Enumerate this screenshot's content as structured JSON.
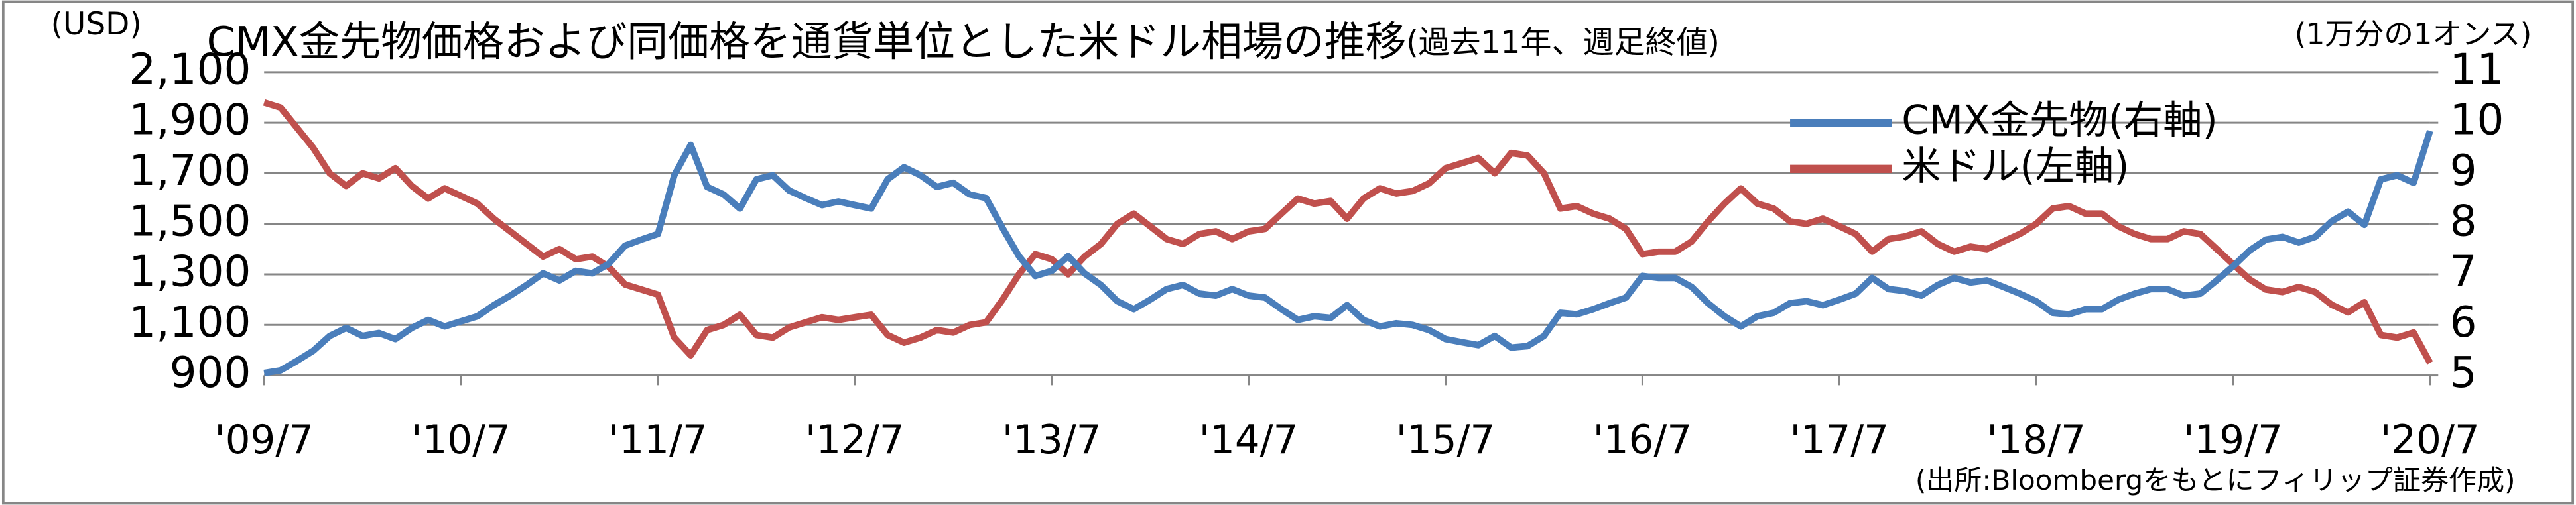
{
  "chart_data": {
    "type": "line",
    "title": "CMX金先物価格および同価格を通貨単位とした米ドル相場の推移",
    "subtitle": "(過去11年、週足終値)",
    "y_label": "(USD)",
    "y2_label": "(1万分の1オンス)",
    "source": "(出所:Bloombergをもとにフィリップ証券作成)",
    "categories": [
      "'09/7",
      null,
      null,
      null,
      null,
      null,
      null,
      null,
      null,
      null,
      null,
      null,
      "'10/7",
      null,
      null,
      null,
      null,
      null,
      null,
      null,
      null,
      null,
      null,
      null,
      "'11/7",
      null,
      null,
      null,
      null,
      null,
      null,
      null,
      null,
      null,
      null,
      null,
      "'12/7",
      null,
      null,
      null,
      null,
      null,
      null,
      null,
      null,
      null,
      null,
      null,
      "'13/7",
      null,
      null,
      null,
      null,
      null,
      null,
      null,
      null,
      null,
      null,
      null,
      "'14/7",
      null,
      null,
      null,
      null,
      null,
      null,
      null,
      null,
      null,
      null,
      null,
      "'15/7",
      null,
      null,
      null,
      null,
      null,
      null,
      null,
      null,
      null,
      null,
      null,
      "'16/7",
      null,
      null,
      null,
      null,
      null,
      null,
      null,
      null,
      null,
      null,
      null,
      "'17/7",
      null,
      null,
      null,
      null,
      null,
      null,
      null,
      null,
      null,
      null,
      null,
      "'18/7",
      null,
      null,
      null,
      null,
      null,
      null,
      null,
      null,
      null,
      null,
      null,
      "'19/7",
      null,
      null,
      null,
      null,
      null,
      null,
      null,
      null,
      null,
      null,
      null,
      "'20/7"
    ],
    "series": [
      {
        "name": "CMX金先物(右軸)",
        "color": "#4a7ebb",
        "axis": "y2",
        "values": [
          5.05,
          5.1,
          5.29,
          5.49,
          5.78,
          5.94,
          5.78,
          5.84,
          5.72,
          5.94,
          6.1,
          5.97,
          6.07,
          6.17,
          6.39,
          6.58,
          6.79,
          7.02,
          6.88,
          7.07,
          7.02,
          7.21,
          7.57,
          7.69,
          7.8,
          8.96,
          9.56,
          8.73,
          8.58,
          8.3,
          8.88,
          8.96,
          8.66,
          8.51,
          8.37,
          8.44,
          8.37,
          8.3,
          8.88,
          9.12,
          8.96,
          8.73,
          8.81,
          8.58,
          8.51,
          7.92,
          7.36,
          6.97,
          7.07,
          7.36,
          7.02,
          6.79,
          6.47,
          6.31,
          6.5,
          6.71,
          6.79,
          6.62,
          6.58,
          6.71,
          6.58,
          6.54,
          6.31,
          6.1,
          6.17,
          6.14,
          6.39,
          6.1,
          5.97,
          6.03,
          6.0,
          5.9,
          5.72,
          5.66,
          5.6,
          5.78,
          5.55,
          5.58,
          5.78,
          6.24,
          6.21,
          6.31,
          6.43,
          6.54,
          6.97,
          6.93,
          6.93,
          6.75,
          6.43,
          6.17,
          5.97,
          6.17,
          6.24,
          6.43,
          6.47,
          6.39,
          6.5,
          6.62,
          6.93,
          6.71,
          6.67,
          6.58,
          6.79,
          6.93,
          6.84,
          6.88,
          6.75,
          6.62,
          6.47,
          6.24,
          6.21,
          6.31,
          6.31,
          6.5,
          6.62,
          6.71,
          6.71,
          6.58,
          6.62,
          6.88,
          7.16,
          7.47,
          7.69,
          7.74,
          7.63,
          7.74,
          8.05,
          8.24,
          7.98,
          8.88,
          8.96,
          8.81,
          9.84
        ]
      },
      {
        "name": "米ドル(左軸)",
        "color": "#c0504d",
        "values": [
          1980,
          1960,
          1880,
          1800,
          1700,
          1650,
          1700,
          1680,
          1720,
          1650,
          1600,
          1640,
          1610,
          1580,
          1520,
          1470,
          1420,
          1370,
          1400,
          1360,
          1370,
          1330,
          1260,
          1240,
          1220,
          1050,
          980,
          1080,
          1100,
          1140,
          1060,
          1050,
          1090,
          1110,
          1130,
          1120,
          1130,
          1140,
          1060,
          1030,
          1050,
          1080,
          1070,
          1100,
          1110,
          1200,
          1300,
          1380,
          1360,
          1300,
          1370,
          1420,
          1500,
          1540,
          1490,
          1440,
          1420,
          1460,
          1470,
          1440,
          1470,
          1480,
          1540,
          1600,
          1580,
          1590,
          1520,
          1600,
          1640,
          1620,
          1630,
          1660,
          1720,
          1740,
          1760,
          1700,
          1780,
          1770,
          1700,
          1560,
          1570,
          1540,
          1520,
          1480,
          1380,
          1390,
          1390,
          1430,
          1510,
          1580,
          1640,
          1580,
          1560,
          1510,
          1500,
          1520,
          1490,
          1460,
          1390,
          1440,
          1450,
          1470,
          1420,
          1390,
          1410,
          1400,
          1430,
          1460,
          1500,
          1560,
          1570,
          1540,
          1540,
          1490,
          1460,
          1440,
          1440,
          1470,
          1460,
          1400,
          1340,
          1280,
          1240,
          1230,
          1250,
          1230,
          1180,
          1150,
          1190,
          1060,
          1050,
          1070,
          950
        ]
      }
    ],
    "ylim": [
      900,
      2100
    ],
    "yticks": [
      900,
      {
        "value": 1100,
        "label": "1,100"
      },
      {
        "value": 1300,
        "label": "1,300"
      },
      {
        "value": 1500,
        "label": "1,500"
      },
      {
        "value": 1700,
        "label": "1,700"
      },
      {
        "value": 1900,
        "label": "1,900"
      },
      {
        "value": 2100,
        "label": "2,100"
      }
    ],
    "y2lim": [
      5,
      11
    ],
    "y2ticks": [
      5,
      6,
      7,
      8,
      9,
      10,
      11
    ],
    "grid": true,
    "legend": "upper right"
  }
}
